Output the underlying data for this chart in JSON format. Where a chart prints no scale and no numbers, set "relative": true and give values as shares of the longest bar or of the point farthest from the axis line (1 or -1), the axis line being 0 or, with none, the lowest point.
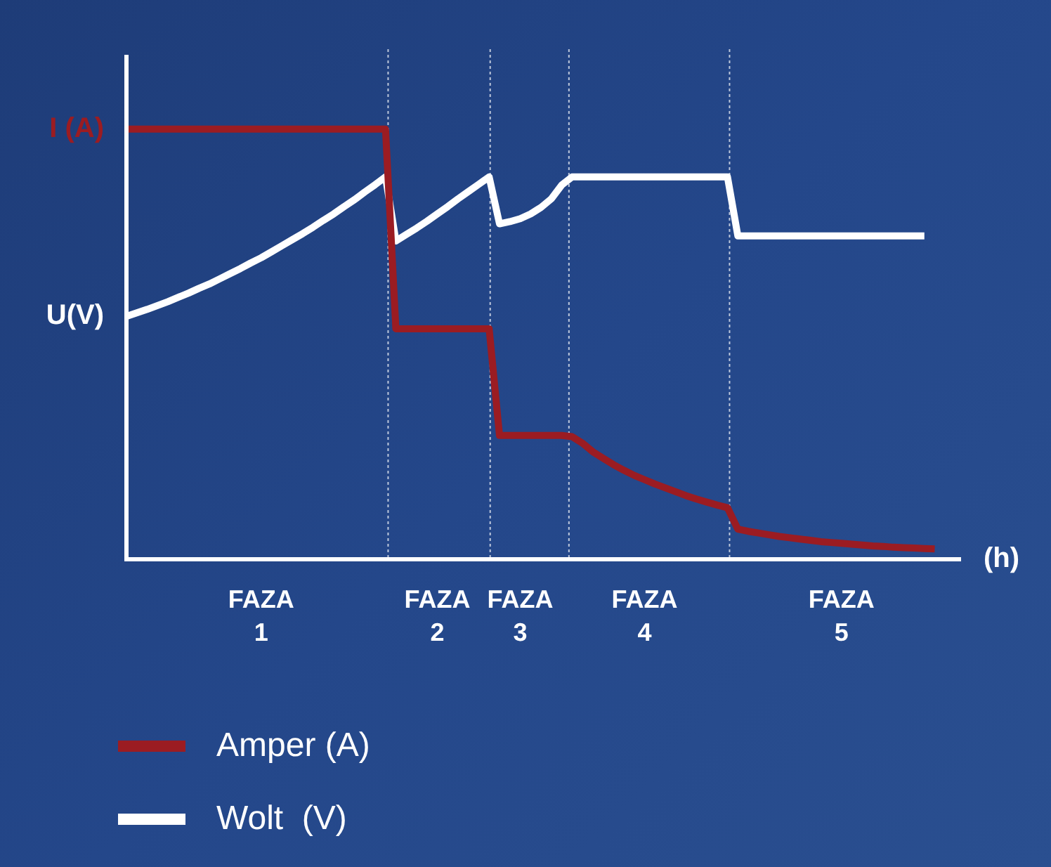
{
  "chart_data": {
    "type": "line",
    "relative": true,
    "xlabel": "(h)",
    "tick_labels": "x",
    "legend": "bottom",
    "marker": "none",
    "annotations": [
      "I (A)",
      "U(V)"
    ],
    "categories": [
      null,
      null,
      null,
      null,
      null,
      null,
      null,
      null,
      null,
      null,
      null,
      null,
      null,
      "FAZA 1",
      null,
      null,
      null,
      null,
      null,
      null,
      null,
      null,
      null,
      null,
      null,
      null,
      null,
      null,
      null,
      null,
      "FAZA 2",
      null,
      null,
      null,
      null,
      null,
      null,
      null,
      "FAZA 3",
      null,
      null,
      null,
      null,
      null,
      null,
      null,
      null,
      null,
      null,
      null,
      "FAZA 4",
      null,
      null,
      null,
      null,
      null,
      null,
      null,
      null,
      null,
      null,
      null,
      null,
      null,
      null,
      null,
      null,
      null,
      null,
      "FAZA 5",
      null,
      null,
      null,
      null,
      null,
      null,
      null,
      null,
      null,
      null,
      null
    ],
    "series": [
      {
        "name": "Amper (A)",
        "color": "#9b1c22",
        "values": [
          1,
          1,
          1,
          1,
          1,
          1,
          1,
          1,
          1,
          1,
          1,
          1,
          1,
          1,
          1,
          1,
          1,
          1,
          1,
          1,
          1,
          1,
          1,
          1,
          1,
          1,
          0.536,
          0.536,
          0.536,
          0.536,
          0.536,
          0.536,
          0.536,
          0.536,
          0.536,
          0.536,
          0.288,
          0.288,
          0.288,
          0.288,
          0.288,
          0.288,
          0.288,
          0.285,
          0.27,
          0.25,
          0.235,
          0.22,
          0.207,
          0.195,
          0.185,
          0.175,
          0.166,
          0.157,
          0.148,
          0.14,
          0.133,
          0.126,
          0.12,
          0.07,
          0.065,
          0.061,
          0.057,
          0.053,
          0.05,
          0.047,
          0.044,
          0.041,
          0.039,
          0.037,
          0.035,
          0.033,
          0.031,
          0.03,
          0.028,
          0.027,
          0.026,
          0.025,
          0.024,
          null,
          null
        ]
      },
      {
        "name": "Wolt  (V)",
        "color": "#ffffff",
        "values": [
          0.565,
          0.573,
          0.581,
          0.59,
          0.599,
          0.609,
          0.619,
          0.63,
          0.64,
          0.652,
          0.664,
          0.676,
          0.689,
          0.701,
          0.715,
          0.729,
          0.743,
          0.757,
          0.772,
          0.788,
          0.803,
          0.82,
          0.836,
          0.854,
          0.871,
          0.889,
          0.74,
          0.755,
          0.77,
          0.786,
          0.803,
          0.82,
          0.838,
          0.855,
          0.872,
          0.889,
          0.78,
          0.785,
          0.792,
          0.803,
          0.818,
          0.838,
          0.87,
          0.889,
          0.889,
          0.889,
          0.889,
          0.889,
          0.889,
          0.889,
          0.889,
          0.889,
          0.889,
          0.889,
          0.889,
          0.889,
          0.889,
          0.889,
          0.889,
          0.752,
          0.752,
          0.752,
          0.752,
          0.752,
          0.752,
          0.752,
          0.752,
          0.752,
          0.752,
          0.752,
          0.752,
          0.752,
          0.752,
          0.752,
          0.752,
          0.752,
          0.752,
          0.752,
          null,
          null,
          null
        ]
      }
    ]
  }
}
